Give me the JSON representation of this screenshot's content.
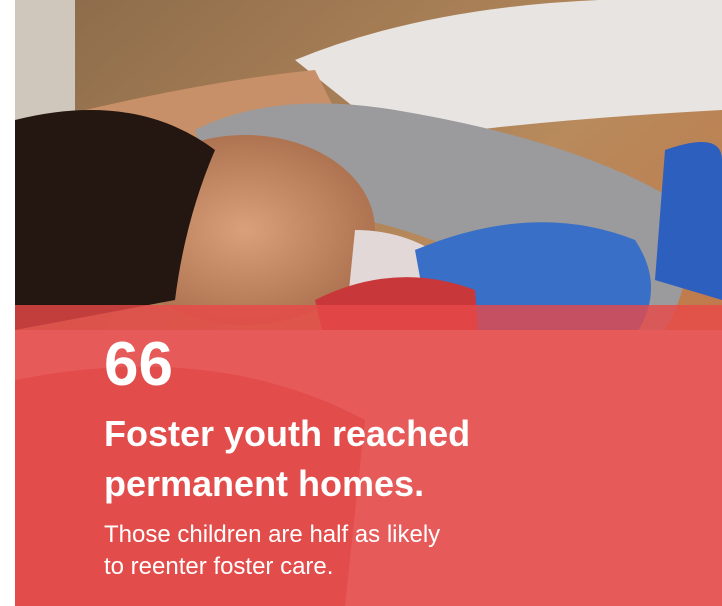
{
  "stat": {
    "number": 66,
    "headline_lines": [
      "Foster youth reached",
      "permanent homes."
    ],
    "description_lines": [
      "Those children are half as likely",
      "to reenter foster care."
    ]
  }
}
